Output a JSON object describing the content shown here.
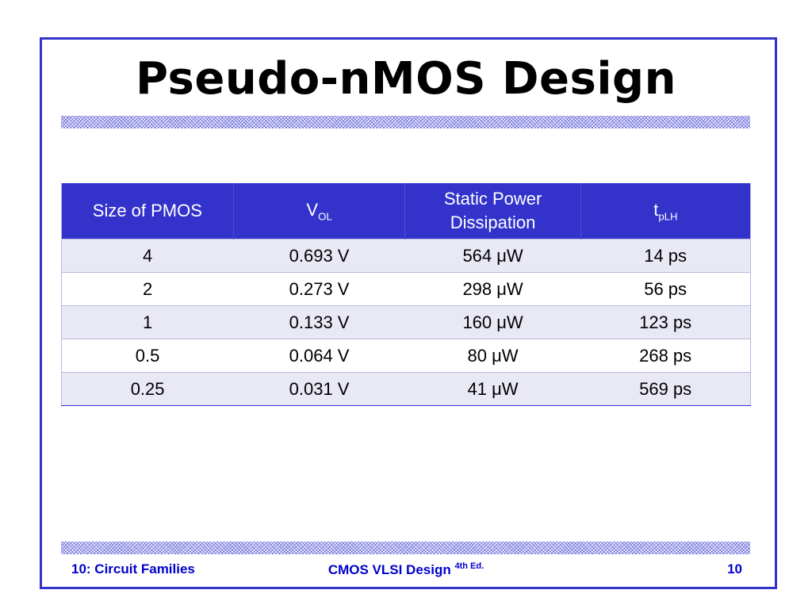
{
  "slide": {
    "title": "Pseudo-nMOS Design"
  },
  "table": {
    "headers": {
      "size": "Size of PMOS",
      "vol_main": "V",
      "vol_sub": "OL",
      "power_line1": "Static Power",
      "power_line2": "Dissipation",
      "tplh_main": "t",
      "tplh_sub": "pLH"
    },
    "rows": [
      {
        "size": "4",
        "vol": "0.693 V",
        "power": "564 μW",
        "tplh": "14 ps"
      },
      {
        "size": "2",
        "vol": "0.273 V",
        "power": "298 μW",
        "tplh": "56 ps"
      },
      {
        "size": "1",
        "vol": "0.133 V",
        "power": "160 μW",
        "tplh": "123 ps"
      },
      {
        "size": "0.5",
        "vol": "0.064 V",
        "power": "80 μW",
        "tplh": "268 ps"
      },
      {
        "size": "0.25",
        "vol": "0.031 V",
        "power": "41 μW",
        "tplh": "569 ps"
      }
    ]
  },
  "footer": {
    "left": "10: Circuit Families",
    "center_main": "CMOS VLSI Design",
    "center_sup": "4th Ed.",
    "page_number": "10"
  },
  "colors": {
    "accent": "#3333cc",
    "footer_text": "#0000cc",
    "row_shade": "#e9e9f6"
  }
}
